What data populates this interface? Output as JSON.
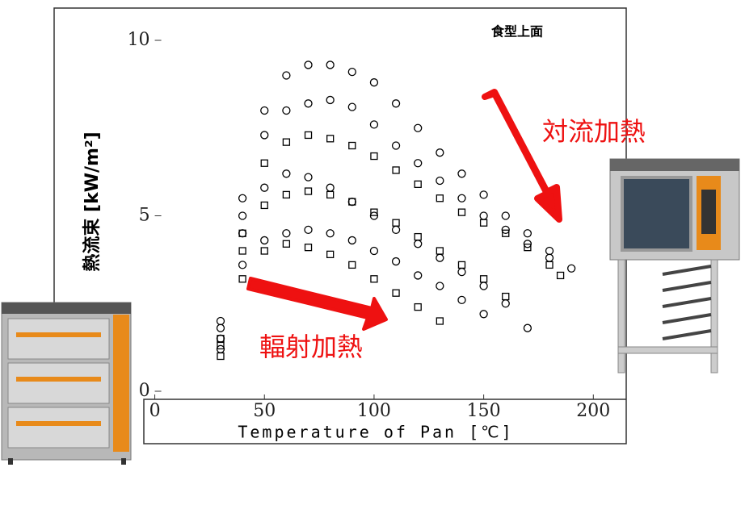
{
  "chart_data": {
    "type": "scatter",
    "title": "食型上面",
    "xlabel": "Temperature of Pan   [℃]",
    "ylabel": "熱流束   [kW/m²]",
    "annotations": [
      "対流加熱",
      "輻射加熱"
    ],
    "xlim": [
      -5,
      215
    ],
    "ylim": [
      0,
      11
    ],
    "xticks": [
      0,
      50,
      100,
      150,
      200
    ],
    "yticks": [
      0,
      5,
      10
    ],
    "series": [
      {
        "marker": "o",
        "color": "#000000",
        "x": [
          30,
          40,
          50,
          60,
          70,
          80,
          90,
          100,
          110,
          120,
          130,
          140,
          150,
          160,
          170,
          180,
          190
        ],
        "values": [
          2,
          5.5,
          8,
          9,
          9.3,
          9.3,
          9.1,
          8.8,
          8.2,
          7.5,
          6.8,
          6.2,
          5.6,
          5.0,
          4.5,
          4.0,
          3.5
        ]
      },
      {
        "marker": "o",
        "color": "#000000",
        "x": [
          30,
          40,
          50,
          60,
          70,
          80,
          90,
          100,
          110,
          120,
          130,
          140,
          150,
          160,
          170,
          180
        ],
        "values": [
          1.8,
          5,
          7.3,
          8,
          8.2,
          8.3,
          8.1,
          7.6,
          7,
          6.5,
          6,
          5.5,
          5,
          4.6,
          4.2,
          3.8
        ]
      },
      {
        "marker": "s",
        "color": "#000000",
        "x": [
          30,
          40,
          50,
          60,
          70,
          80,
          90,
          100,
          110,
          120,
          130,
          140,
          150,
          160,
          170,
          180,
          185
        ],
        "values": [
          1.5,
          4.5,
          6.5,
          7.1,
          7.3,
          7.2,
          7,
          6.7,
          6.3,
          5.9,
          5.5,
          5.1,
          4.8,
          4.5,
          4.1,
          3.6,
          3.3
        ]
      },
      {
        "marker": "o",
        "color": "#000000",
        "x": [
          30,
          40,
          50,
          60,
          70,
          80,
          90,
          100,
          110,
          120,
          130,
          140,
          150,
          160,
          170
        ],
        "values": [
          1.5,
          4.5,
          5.8,
          6.2,
          6.1,
          5.8,
          5.4,
          5,
          4.6,
          4.2,
          3.8,
          3.4,
          3,
          2.5,
          1.8
        ]
      },
      {
        "marker": "s",
        "color": "#000000",
        "x": [
          30,
          40,
          50,
          60,
          70,
          80,
          90,
          100,
          110,
          120,
          130,
          140,
          150,
          160
        ],
        "values": [
          1.3,
          4,
          5.3,
          5.6,
          5.7,
          5.6,
          5.4,
          5.1,
          4.8,
          4.4,
          4,
          3.6,
          3.2,
          2.7
        ]
      },
      {
        "marker": "o",
        "color": "#000000",
        "x": [
          30,
          40,
          50,
          60,
          70,
          80,
          90,
          100,
          110,
          120,
          130,
          140,
          150
        ],
        "values": [
          1.2,
          3.6,
          4.3,
          4.5,
          4.6,
          4.5,
          4.3,
          4,
          3.7,
          3.3,
          3,
          2.6,
          2.2
        ]
      },
      {
        "marker": "s",
        "color": "#000000",
        "x": [
          30,
          40,
          50,
          60,
          70,
          80,
          90,
          100,
          110,
          120,
          130
        ],
        "values": [
          1,
          3.2,
          4,
          4.2,
          4.1,
          3.9,
          3.6,
          3.2,
          2.8,
          2.4,
          2
        ]
      }
    ]
  }
}
